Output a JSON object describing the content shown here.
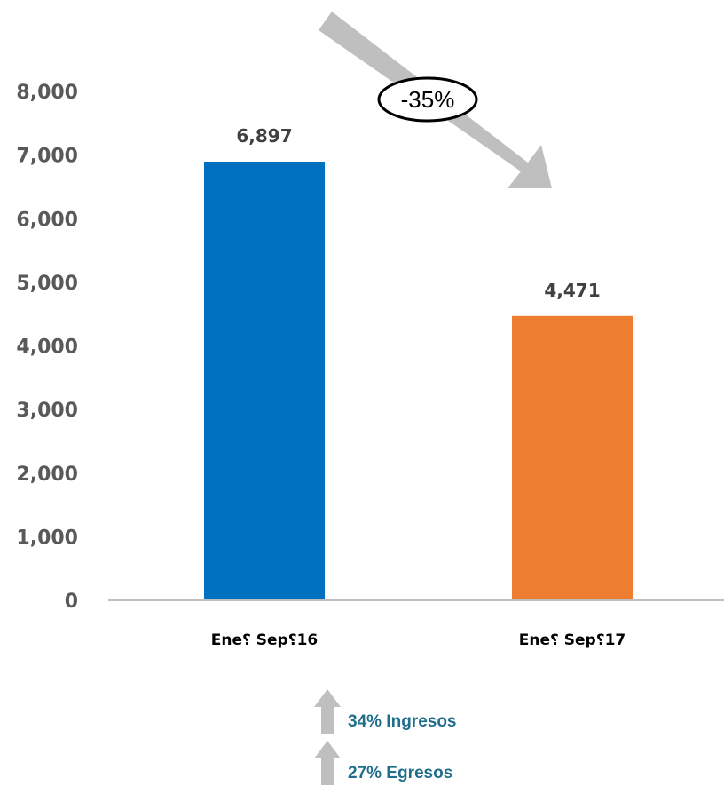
{
  "chart_data": {
    "type": "bar",
    "categories": [
      "Ene⸮ Sep⸮16",
      "Ene⸮ Sep⸮17"
    ],
    "values": [
      6897,
      4471
    ],
    "value_labels": [
      "6,897",
      "4,471"
    ],
    "colors": [
      "#0070C0",
      "#ED7D31"
    ],
    "ylim": [
      0,
      8000
    ],
    "yticks": [
      0,
      1000,
      2000,
      3000,
      4000,
      5000,
      6000,
      7000,
      8000
    ],
    "ytick_labels": [
      "0",
      "1,000",
      "2,000",
      "3,000",
      "4,000",
      "5,000",
      "6,000",
      "7,000",
      "8,000"
    ],
    "grid": false,
    "title": "",
    "xlabel": "",
    "ylabel": "",
    "annotation": {
      "text": "-35%",
      "arrow": "down-right",
      "arrow_color": "#BFBFBF"
    }
  },
  "notes": [
    {
      "text": "34% Ingresos",
      "icon": "up-arrow-icon"
    },
    {
      "text": "27% Egresos",
      "icon": "up-arrow-icon"
    }
  ],
  "colors": {
    "note_text": "#1F6E8C",
    "arrow_gray": "#BFBFBF",
    "axis": "#BFBFBF"
  }
}
